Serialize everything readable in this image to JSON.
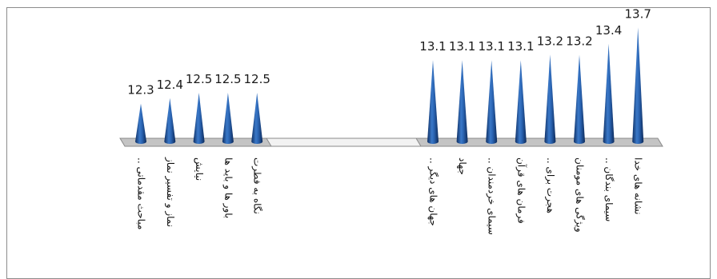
{
  "chart_data": {
    "type": "bar",
    "style": "3d-cone",
    "title": "",
    "xlabel": "",
    "ylabel": "",
    "series_color": "#1f5aa6",
    "floor_color": "#bcbcbc",
    "groups": [
      {
        "categories": [
          "مباحث مقدماتی ..",
          "نماز و تفسیر نماز",
          "نیایش",
          "باور ها و باید ها",
          "نگاه به فطرت"
        ],
        "values": [
          12.3,
          12.4,
          12.5,
          12.5,
          12.5
        ]
      },
      {
        "categories": [
          "جهان های دیگر ..",
          "جهاد",
          "سیمای خردمندان ..",
          "فرمان های قرآن",
          "هجرت برای ..",
          "ویژگی های مومنان",
          "سیمای بندگان ..",
          "نشانه های خدا"
        ],
        "values": [
          13.1,
          13.1,
          13.1,
          13.1,
          13.2,
          13.2,
          13.4,
          13.7
        ]
      }
    ]
  }
}
